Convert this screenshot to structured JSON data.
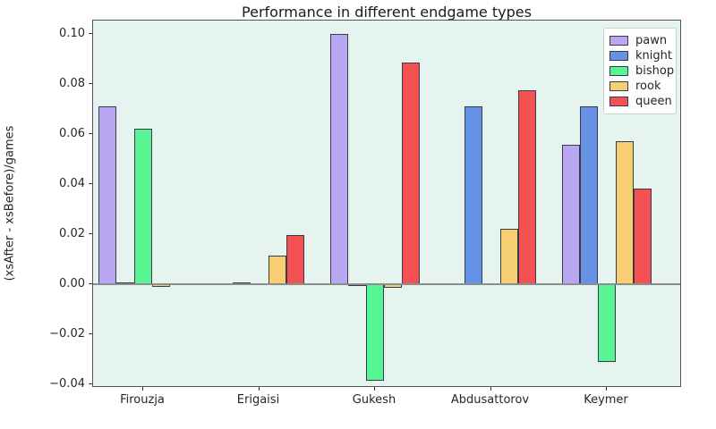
{
  "figure": {
    "kind": "matplotlib-style static chart image"
  },
  "chart_data": {
    "type": "bar",
    "title": "Performance in different endgame types",
    "xlabel": "",
    "ylabel": "(xsAfter - xsBefore)/games",
    "categories": [
      "Firouzja",
      "Erigaisi",
      "Gukesh",
      "Abdusattorov",
      "Keymer"
    ],
    "series": [
      {
        "name": "pawn",
        "color": "#b9a7f2",
        "values": [
          0.0712,
          0.0,
          0.1,
          0.0005,
          0.0556
        ]
      },
      {
        "name": "knight",
        "color": "#6592e4",
        "values": [
          0.0006,
          0.0008,
          -0.0006,
          0.071,
          0.071
        ]
      },
      {
        "name": "bishop",
        "color": "#57f593",
        "values": [
          0.0621,
          0.0004,
          -0.0385,
          0.0,
          -0.0311
        ]
      },
      {
        "name": "rook",
        "color": "#f5cf72",
        "values": [
          -0.001,
          0.0114,
          -0.0015,
          0.0221,
          0.0571
        ]
      },
      {
        "name": "queen",
        "color": "#f45252",
        "values": [
          0.0,
          0.0197,
          0.0886,
          0.0775,
          0.0382
        ]
      }
    ],
    "ylim": [
      -0.0414,
      0.1054
    ],
    "yticks": [
      0.1,
      0.08,
      0.06,
      0.04,
      0.02,
      0.0,
      -0.02,
      -0.04
    ],
    "grid": false,
    "legend": {
      "position": "upper right",
      "entries": [
        "pawn",
        "knight",
        "bishop",
        "rook",
        "queen"
      ]
    },
    "plot_background": "#e6f4ef",
    "figure_background": "#ffffff",
    "bar_edge_color": "#3a3a4a",
    "zero_line_color": "#8a8f8d"
  }
}
